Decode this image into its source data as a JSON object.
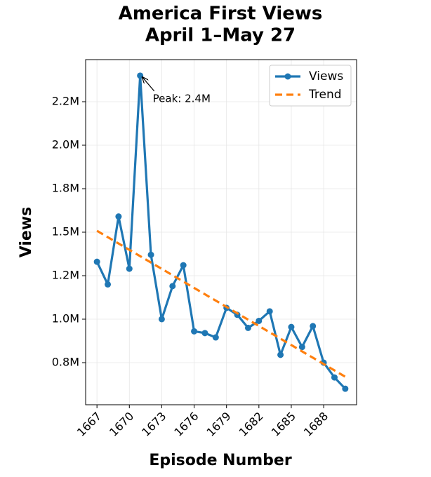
{
  "chart_data": {
    "type": "line",
    "title": "America First Views",
    "subtitle": "April 1–May 27",
    "xlabel": "Episode Number",
    "ylabel": "Views",
    "x": [
      1667,
      1668,
      1669,
      1670,
      1671,
      1672,
      1673,
      1674,
      1675,
      1676,
      1677,
      1678,
      1679,
      1680,
      1681,
      1682,
      1683,
      1684,
      1685,
      1686,
      1687,
      1688,
      1689,
      1690
    ],
    "series": [
      {
        "name": "Views",
        "color": "#1f77b4",
        "style": "solid",
        "markers": true,
        "values": [
          1330000,
          1200000,
          1590000,
          1290000,
          2400000,
          1370000,
          1000000,
          1190000,
          1310000,
          930000,
          920000,
          895000,
          1065000,
          1025000,
          950000,
          990000,
          1045000,
          795000,
          955000,
          840000,
          960000,
          750000,
          665000,
          600000
        ]
      },
      {
        "name": "Trend",
        "color": "#ff7f0e",
        "style": "dashed",
        "markers": false,
        "x": [
          1667,
          1690
        ],
        "values": [
          1508000,
          669000
        ]
      }
    ],
    "annotations": [
      {
        "text": "Peak: 2.4M",
        "x": 1671,
        "y": 2400000
      }
    ],
    "xlim": [
      1665.95,
      1691.05
    ],
    "ylim": [
      508000,
      2492000
    ],
    "xticks": [
      1667,
      1670,
      1673,
      1676,
      1679,
      1682,
      1685,
      1688
    ],
    "yticks": [
      {
        "value": 750000,
        "label": "0.8M"
      },
      {
        "value": 1000000,
        "label": "1.0M"
      },
      {
        "value": 1250000,
        "label": "1.2M"
      },
      {
        "value": 1500000,
        "label": "1.5M"
      },
      {
        "value": 1750000,
        "label": "1.8M"
      },
      {
        "value": 2000000,
        "label": "2.0M"
      },
      {
        "value": 2250000,
        "label": "2.2M"
      }
    ],
    "grid": true,
    "legend": "upper right"
  }
}
